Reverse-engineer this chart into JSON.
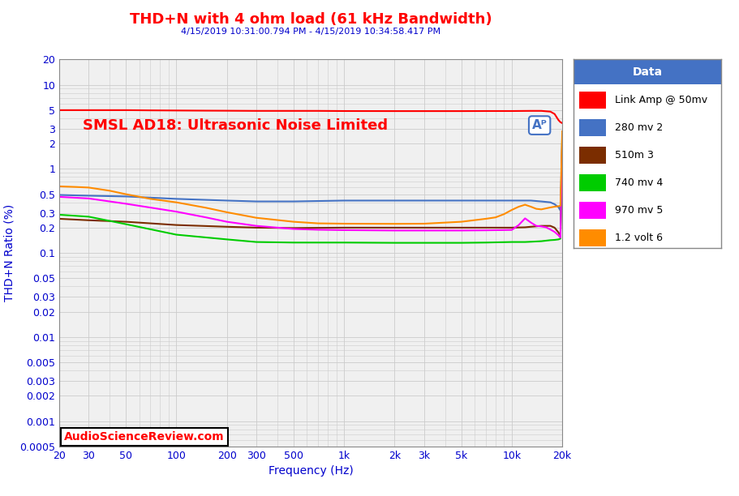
{
  "title": "THD+N with 4 ohm load (61 kHz Bandwidth)",
  "subtitle": "4/15/2019 10:31:00.794 PM - 4/15/2019 10:34:58.417 PM",
  "watermark": "SMSL AD18: Ultrasonic Noise Limited",
  "xlabel": "Frequency (Hz)",
  "ylabel": "THD+N Ratio (%)",
  "title_color": "#FF0000",
  "subtitle_color": "#0000CC",
  "watermark_color": "#FF0000",
  "xlabel_color": "#0000CC",
  "ylabel_color": "#0000CC",
  "tick_color": "#0000CC",
  "background_color": "#F0F0F0",
  "grid_color": "#CCCCCC",
  "asr_label": "AudioScienceReview.com",
  "asr_label_color": "#FF0000",
  "legend_title": "Data",
  "legend_title_bg": "#4472C4",
  "series": [
    {
      "label": "Link Amp @ 50mv",
      "color": "#FF0000",
      "freqs": [
        20,
        25,
        30,
        40,
        50,
        70,
        100,
        150,
        200,
        300,
        500,
        700,
        1000,
        2000,
        3000,
        5000,
        7000,
        10000,
        13000,
        15000,
        17000,
        18000,
        19000,
        19500,
        20000
      ],
      "values": [
        5.0,
        5.0,
        5.0,
        5.0,
        5.0,
        4.97,
        4.95,
        4.93,
        4.92,
        4.9,
        4.9,
        4.9,
        4.88,
        4.87,
        4.87,
        4.87,
        4.88,
        4.88,
        4.9,
        4.9,
        4.8,
        4.5,
        3.8,
        3.6,
        3.5
      ]
    },
    {
      "label": "280 mv 2",
      "color": "#4472C4",
      "freqs": [
        20,
        30,
        50,
        100,
        200,
        300,
        500,
        1000,
        2000,
        3000,
        5000,
        7000,
        10000,
        12000,
        13000,
        15000,
        17000,
        18000,
        19000,
        19500,
        20000
      ],
      "values": [
        0.49,
        0.48,
        0.47,
        0.44,
        0.42,
        0.41,
        0.41,
        0.42,
        0.42,
        0.42,
        0.42,
        0.42,
        0.42,
        0.42,
        0.42,
        0.41,
        0.4,
        0.38,
        0.35,
        0.32,
        1.9
      ]
    },
    {
      "label": "510m 3",
      "color": "#7B2D00",
      "freqs": [
        20,
        30,
        50,
        100,
        200,
        300,
        500,
        1000,
        2000,
        3000,
        5000,
        7000,
        10000,
        12000,
        13000,
        15000,
        17000,
        18000,
        19000,
        19500,
        20000
      ],
      "values": [
        0.255,
        0.245,
        0.235,
        0.215,
        0.205,
        0.2,
        0.198,
        0.2,
        0.2,
        0.2,
        0.2,
        0.2,
        0.2,
        0.202,
        0.205,
        0.21,
        0.21,
        0.2,
        0.175,
        0.16,
        1.6
      ]
    },
    {
      "label": "740 mv 4",
      "color": "#00CC00",
      "freqs": [
        20,
        30,
        50,
        100,
        200,
        300,
        500,
        1000,
        2000,
        3000,
        5000,
        7000,
        10000,
        12000,
        13000,
        15000,
        17000,
        18000,
        19000,
        19500,
        20000
      ],
      "values": [
        0.285,
        0.27,
        0.22,
        0.165,
        0.145,
        0.135,
        0.133,
        0.133,
        0.132,
        0.132,
        0.132,
        0.133,
        0.135,
        0.135,
        0.136,
        0.138,
        0.142,
        0.143,
        0.145,
        0.148,
        2.5
      ]
    },
    {
      "label": "970 mv 5",
      "color": "#FF00FF",
      "freqs": [
        20,
        30,
        50,
        100,
        150,
        200,
        300,
        500,
        700,
        1000,
        2000,
        3000,
        5000,
        7000,
        10000,
        11000,
        12000,
        13000,
        14000,
        15000,
        16000,
        17000,
        18000,
        19000,
        19500,
        20000
      ],
      "values": [
        0.465,
        0.445,
        0.385,
        0.31,
        0.265,
        0.235,
        0.21,
        0.193,
        0.189,
        0.187,
        0.185,
        0.185,
        0.185,
        0.186,
        0.188,
        0.215,
        0.258,
        0.23,
        0.21,
        0.207,
        0.202,
        0.19,
        0.178,
        0.162,
        0.152,
        2.2
      ]
    },
    {
      "label": "1.2 volt 6",
      "color": "#FF8C00",
      "freqs": [
        20,
        25,
        30,
        40,
        50,
        70,
        100,
        150,
        200,
        300,
        500,
        700,
        1000,
        2000,
        3000,
        5000,
        7000,
        8000,
        9000,
        10000,
        11000,
        12000,
        13000,
        14000,
        15000,
        17000,
        18000,
        19000,
        19500,
        20000
      ],
      "values": [
        0.62,
        0.61,
        0.6,
        0.55,
        0.5,
        0.44,
        0.4,
        0.345,
        0.305,
        0.262,
        0.235,
        0.225,
        0.223,
        0.222,
        0.223,
        0.235,
        0.255,
        0.265,
        0.29,
        0.325,
        0.355,
        0.375,
        0.355,
        0.335,
        0.33,
        0.348,
        0.355,
        0.36,
        0.365,
        2.8
      ]
    }
  ],
  "xmin": 20,
  "xmax": 20000,
  "ymin": 0.0005,
  "ymax": 20,
  "xticks": [
    20,
    30,
    50,
    100,
    200,
    300,
    500,
    1000,
    2000,
    3000,
    5000,
    10000,
    20000
  ],
  "xticklabels": [
    "20",
    "30",
    "50",
    "100",
    "200",
    "300",
    "500",
    "1k",
    "2k",
    "3k",
    "5k",
    "10k",
    "20k"
  ],
  "yticks": [
    0.0005,
    0.001,
    0.002,
    0.003,
    0.005,
    0.01,
    0.02,
    0.03,
    0.05,
    0.1,
    0.2,
    0.3,
    0.5,
    1,
    2,
    3,
    5,
    10,
    20
  ],
  "yticklabels": [
    "0.0005",
    "0.001",
    "0.002",
    "0.003",
    "0.005",
    "0.01",
    "0.02",
    "0.03",
    "0.05",
    "0.1",
    "0.2",
    "0.3",
    "0.5",
    "1",
    "2",
    "3",
    "5",
    "10",
    "20"
  ]
}
